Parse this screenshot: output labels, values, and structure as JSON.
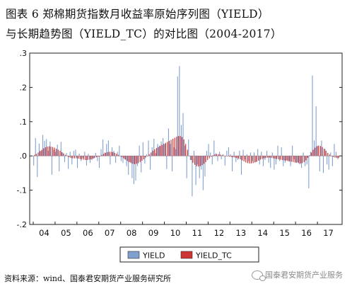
{
  "title": {
    "line1": "图表 6 郑棉期货指数月收益率原始序列图（YIELD）",
    "line2": "与长期趋势图（YIELD_TC）的对比图（2004-2017）"
  },
  "source_text": "资料来源：wind、国泰君安期货产业服务研究所",
  "watermark_text": "国泰君安期货产业服务",
  "chart_data": {
    "type": "bar",
    "title": "",
    "xlabel": "",
    "ylabel": "",
    "ylim": [
      -0.2,
      0.3
    ],
    "yticks": [
      -0.2,
      -0.1,
      0.0,
      0.1,
      0.2,
      0.3
    ],
    "ytick_labels": [
      "-.2",
      "-.1",
      ".0",
      ".1",
      ".2",
      ".3"
    ],
    "xtick_labels": [
      "04",
      "05",
      "06",
      "07",
      "08",
      "09",
      "10",
      "11",
      "12",
      "13",
      "14",
      "15",
      "16",
      "17"
    ],
    "grid": false,
    "legend_position": "bottom-center",
    "start": "2004-01",
    "end": "2017-12",
    "series": [
      {
        "name": "YIELD",
        "color": "#7f9fcf",
        "values": [
          -0.028,
          0.052,
          -0.062,
          0.036,
          0.015,
          0.061,
          0.044,
          0.049,
          0.015,
          0.042,
          -0.055,
          0.018,
          0.012,
          0.033,
          -0.045,
          0.041,
          0.01,
          -0.018,
          0.008,
          -0.038,
          0.012,
          -0.025,
          0.015,
          0.018,
          -0.035,
          0.007,
          -0.015,
          -0.005,
          0.012,
          -0.028,
          0.006,
          -0.02,
          -0.012,
          -0.008,
          0.009,
          -0.015,
          -0.035,
          0.02,
          0.048,
          0.01,
          0.035,
          0.045,
          -0.025,
          0.025,
          0.015,
          -0.02,
          0.012,
          0.03,
          -0.015,
          -0.02,
          -0.01,
          -0.03,
          -0.055,
          -0.018,
          -0.065,
          -0.082,
          -0.072,
          -0.03,
          0.03,
          -0.048,
          0.04,
          -0.022,
          0.005,
          0.045,
          -0.04,
          0.025,
          0.05,
          0.008,
          0.035,
          0.03,
          0.042,
          0.052,
          0.035,
          -0.038,
          0.08,
          0.035,
          -0.045,
          0.025,
          0.02,
          0.232,
          0.262,
          0.09,
          0.125,
          0.03,
          -0.065,
          0.048,
          -0.012,
          -0.118,
          0.015,
          -0.085,
          -0.025,
          -0.065,
          -0.04,
          -0.1,
          -0.06,
          0.015,
          0.035,
          0.01,
          -0.025,
          0.045,
          0.008,
          -0.015,
          0.012,
          -0.01,
          0.005,
          -0.028,
          0.015,
          0.025,
          0.005,
          -0.045,
          0.012,
          -0.018,
          -0.012,
          0.015,
          -0.055,
          0.018,
          -0.01,
          0.005,
          -0.015,
          0.01,
          -0.015,
          0.01,
          -0.018,
          0.02,
          -0.025,
          0.012,
          -0.03,
          -0.012,
          0.015,
          -0.02,
          -0.035,
          0.01,
          -0.04,
          -0.025,
          0.03,
          -0.015,
          0.025,
          -0.03,
          -0.02,
          -0.012,
          -0.015,
          -0.03,
          0.03,
          -0.01,
          -0.02,
          -0.018,
          -0.025,
          -0.035,
          0.01,
          -0.03,
          -0.025,
          -0.095,
          0.012,
          0.235,
          0.045,
          0.145,
          0.03,
          -0.045,
          0.045,
          -0.05,
          0.02,
          -0.025,
          -0.04,
          0.01,
          -0.03,
          0.035,
          0.012,
          -0.01
        ]
      },
      {
        "name": "YIELD_TC",
        "color": "#cc3333",
        "values": [
          0.003,
          0.006,
          0.01,
          0.014,
          0.018,
          0.022,
          0.025,
          0.027,
          0.028,
          0.027,
          0.026,
          0.024,
          0.021,
          0.018,
          0.015,
          0.011,
          0.007,
          0.003,
          -0.001,
          -0.004,
          -0.006,
          -0.007,
          -0.007,
          -0.007,
          -0.008,
          -0.009,
          -0.01,
          -0.011,
          -0.012,
          -0.012,
          -0.011,
          -0.01,
          -0.008,
          -0.006,
          -0.004,
          -0.002,
          0.0,
          0.003,
          0.006,
          0.009,
          0.011,
          0.012,
          0.012,
          0.011,
          0.009,
          0.006,
          0.003,
          0.0,
          -0.003,
          -0.007,
          -0.011,
          -0.015,
          -0.018,
          -0.021,
          -0.023,
          -0.024,
          -0.023,
          -0.021,
          -0.018,
          -0.014,
          -0.01,
          -0.005,
          0.0,
          0.005,
          0.01,
          0.015,
          0.019,
          0.023,
          0.026,
          0.029,
          0.032,
          0.035,
          0.038,
          0.041,
          0.044,
          0.047,
          0.05,
          0.053,
          0.056,
          0.058,
          0.058,
          0.055,
          0.048,
          0.035,
          0.018,
          0.0,
          -0.012,
          -0.02,
          -0.026,
          -0.03,
          -0.031,
          -0.03,
          -0.027,
          -0.023,
          -0.018,
          -0.012,
          -0.007,
          -0.002,
          0.002,
          0.004,
          0.005,
          0.005,
          0.004,
          0.003,
          0.001,
          0.0,
          -0.001,
          -0.002,
          -0.003,
          -0.004,
          -0.005,
          -0.006,
          -0.008,
          -0.01,
          -0.013,
          -0.016,
          -0.019,
          -0.021,
          -0.022,
          -0.022,
          -0.021,
          -0.019,
          -0.017,
          -0.014,
          -0.011,
          -0.009,
          -0.007,
          -0.006,
          -0.005,
          -0.005,
          -0.006,
          -0.007,
          -0.008,
          -0.009,
          -0.01,
          -0.011,
          -0.012,
          -0.013,
          -0.014,
          -0.015,
          -0.016,
          -0.017,
          -0.018,
          -0.019,
          -0.02,
          -0.021,
          -0.022,
          -0.021,
          -0.018,
          -0.013,
          -0.006,
          0.002,
          0.01,
          0.018,
          0.024,
          0.028,
          0.03,
          0.029,
          0.026,
          0.021,
          0.015,
          0.009,
          0.004,
          0.0,
          -0.003,
          -0.005,
          -0.006,
          -0.006
        ]
      }
    ]
  }
}
